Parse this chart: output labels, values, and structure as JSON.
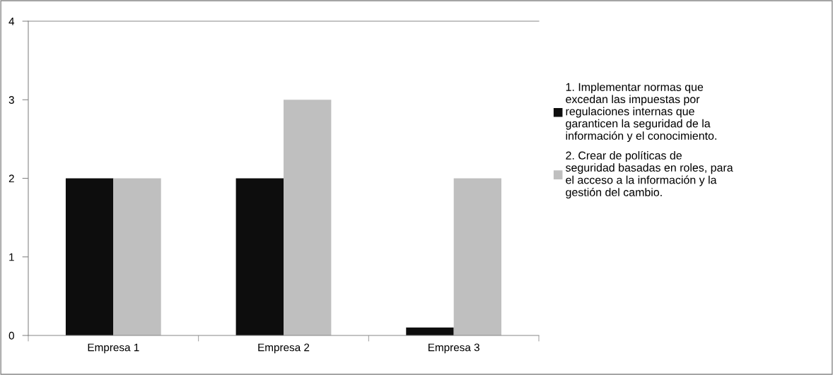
{
  "chart_data": {
    "type": "bar",
    "categories": [
      "Empresa 1",
      "Empresa 2",
      "Empresa 3"
    ],
    "series": [
      {
        "name": "1. Implementar normas que\nexcedan las impuestas por\nregulaciones internas que\ngaranticen la seguridad de la\ninformación y el conocimiento.",
        "color": "#0d0d0d",
        "values": [
          2,
          2,
          0.1
        ]
      },
      {
        "name": "2. Crear de políticas de\nseguridad basadas en roles, para\nel acceso a la información y la\ngestión del cambio.",
        "color": "#bfbfbf",
        "values": [
          2,
          3,
          2
        ]
      }
    ],
    "ylim": [
      0,
      4
    ],
    "yticks": [
      0,
      1,
      2,
      3,
      4
    ],
    "grid": false,
    "legend": "right"
  }
}
